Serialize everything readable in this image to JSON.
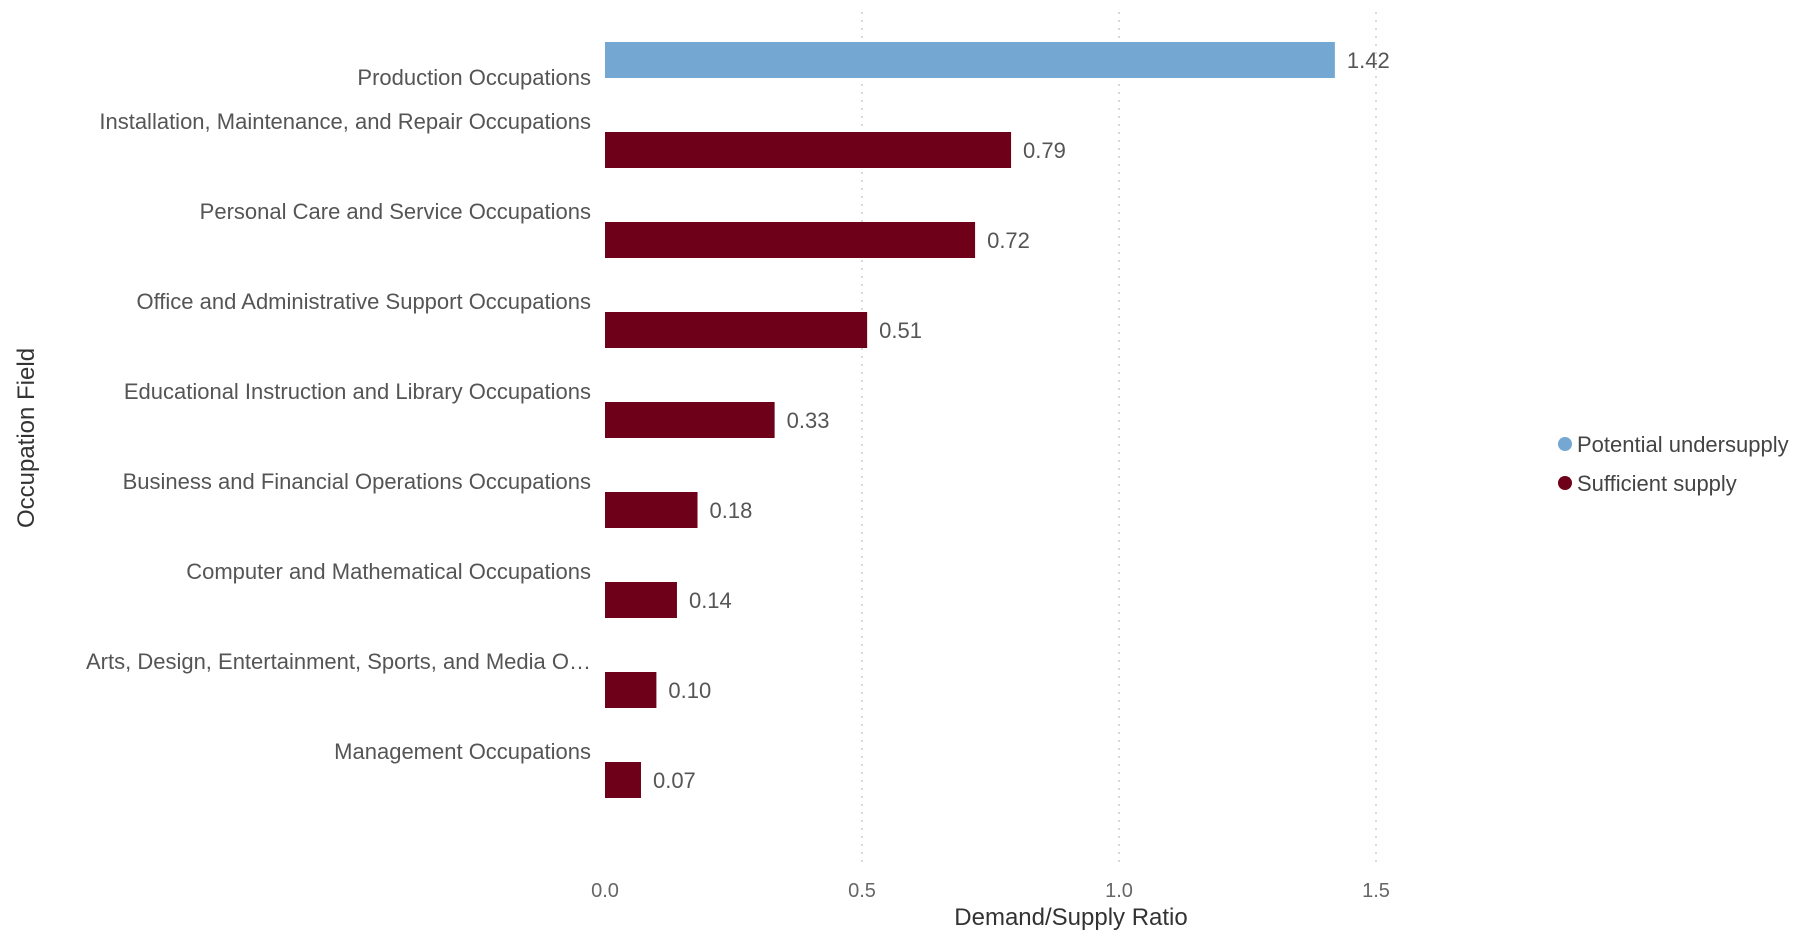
{
  "chart_data": {
    "type": "bar",
    "orientation": "horizontal",
    "categories": [
      "Production Occupations",
      "Installation, Maintenance, and Repair Occupations",
      "Personal Care and Service Occupations",
      "Office and Administrative Support Occupations",
      "Educational Instruction and Library Occupations",
      "Business and Financial Operations Occupations",
      "Computer and Mathematical Occupations",
      "Arts, Design, Entertainment, Sports, and Media O…",
      "Management Occupations"
    ],
    "values": [
      1.42,
      0.79,
      0.72,
      0.51,
      0.33,
      0.18,
      0.14,
      0.1,
      0.07
    ],
    "value_labels": [
      "1.42",
      "0.79",
      "0.72",
      "0.51",
      "0.33",
      "0.18",
      "0.14",
      "0.10",
      "0.07"
    ],
    "status": [
      "Potential undersupply",
      "Sufficient supply",
      "Sufficient supply",
      "Sufficient supply",
      "Sufficient supply",
      "Sufficient supply",
      "Sufficient supply",
      "Sufficient supply",
      "Sufficient supply"
    ],
    "xlabel": "Demand/Supply Ratio",
    "ylabel": "Occupation Field",
    "xlim": [
      0,
      1.5
    ],
    "xticks": [
      0.0,
      0.5,
      1.0,
      1.5
    ],
    "xtick_labels": [
      "0.0",
      "0.5",
      "1.0",
      "1.5"
    ],
    "grid": "vertical dotted",
    "legend": {
      "placement": "right",
      "entries": [
        {
          "label": "Potential undersupply",
          "color": "#74a7d2"
        },
        {
          "label": "Sufficient supply",
          "color": "#6e0019"
        }
      ]
    }
  }
}
